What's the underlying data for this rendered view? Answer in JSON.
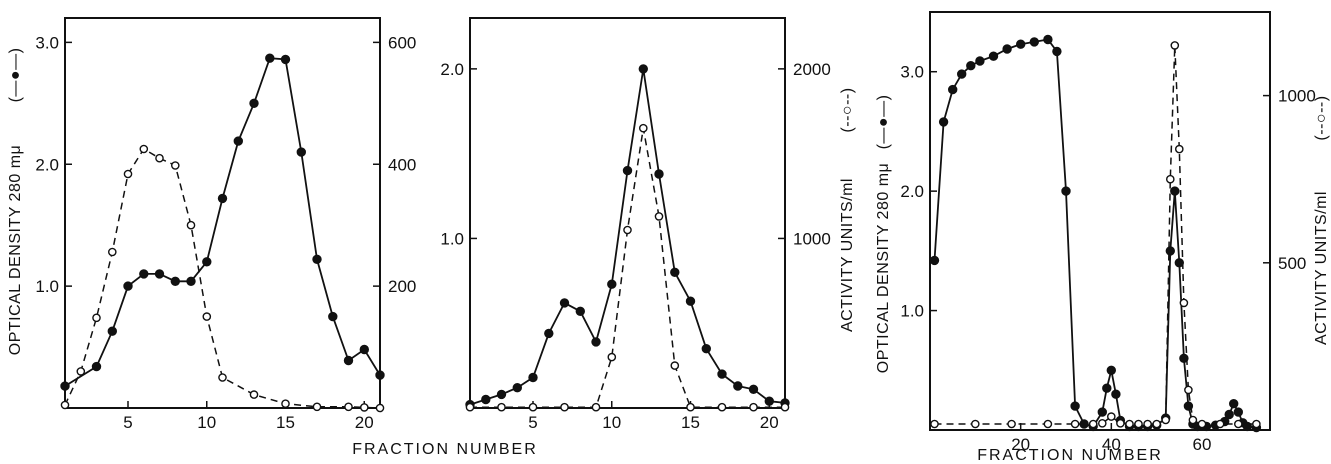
{
  "chart_data": [
    {
      "type": "line",
      "ylabel_left": "OPTICAL DENSITY 280 mμ",
      "ylabel_left_legend": "(—●—)",
      "ylabel_right": "",
      "xlabel": "",
      "xlim": [
        1,
        21
      ],
      "xticks": [
        5,
        10,
        15,
        20
      ],
      "ylim_left": [
        0,
        3.2
      ],
      "yticks_left": [
        "1.0",
        "2.0",
        "3.0"
      ],
      "ylim_right": [
        0,
        640
      ],
      "yticks_right": [
        "200",
        "400",
        "600"
      ],
      "series": [
        {
          "style": "solid-filled",
          "axis": "left",
          "x": [
            1,
            3,
            4,
            5,
            6,
            7,
            8,
            9,
            10,
            11,
            12,
            13,
            14,
            15,
            16,
            17,
            18,
            19,
            20,
            21
          ],
          "y": [
            0.18,
            0.34,
            0.63,
            1.0,
            1.1,
            1.1,
            1.04,
            1.04,
            1.2,
            1.72,
            2.19,
            2.5,
            2.87,
            2.86,
            2.1,
            1.22,
            0.75,
            0.39,
            0.48,
            0.27
          ]
        },
        {
          "style": "dashed-open",
          "axis": "right",
          "x": [
            1,
            2,
            3,
            4,
            5,
            6,
            7,
            8,
            9,
            10,
            11,
            13,
            15,
            17,
            19,
            20,
            21
          ],
          "y": [
            5,
            60,
            148,
            256,
            384,
            425,
            410,
            398,
            300,
            150,
            50,
            22,
            7,
            2,
            2,
            1,
            0
          ]
        }
      ]
    },
    {
      "type": "line",
      "ylabel_left": "",
      "ylabel_right": "ACTIVITY UNITS/ml",
      "ylabel_right_legend": "(--○--)",
      "xlabel": "FRACTION NUMBER",
      "xlim": [
        1,
        21
      ],
      "xticks": [
        5,
        10,
        15,
        20
      ],
      "ylim_left": [
        0,
        2.3
      ],
      "yticks_left": [
        "1.0",
        "2.0"
      ],
      "ylim_right": [
        0,
        2300
      ],
      "yticks_right": [
        "1000",
        "2000"
      ],
      "series": [
        {
          "style": "solid-filled",
          "axis": "left",
          "x": [
            1,
            2,
            3,
            4,
            5,
            6,
            7,
            8,
            9,
            10,
            11,
            12,
            13,
            14,
            15,
            16,
            17,
            18,
            19,
            20,
            21
          ],
          "y": [
            0.02,
            0.05,
            0.08,
            0.12,
            0.18,
            0.44,
            0.62,
            0.57,
            0.39,
            0.73,
            1.4,
            2.0,
            1.38,
            0.8,
            0.63,
            0.35,
            0.2,
            0.13,
            0.11,
            0.04,
            0.03
          ]
        },
        {
          "style": "dashed-open",
          "axis": "right",
          "x": [
            1,
            3,
            5,
            7,
            9,
            10,
            11,
            12,
            13,
            14,
            15,
            17,
            19,
            21
          ],
          "y": [
            5,
            5,
            5,
            5,
            5,
            300,
            1050,
            1650,
            1130,
            250,
            5,
            5,
            5,
            5
          ]
        }
      ]
    },
    {
      "type": "line",
      "ylabel_left": "OPTICAL DENSITY 280 mμ",
      "ylabel_left_legend": "(—●—)",
      "ylabel_right": "ACTIVITY UNITS/ml",
      "ylabel_right_legend": "(--○--)",
      "xlabel": "FRACTION NUMBER",
      "xlim": [
        0,
        75
      ],
      "xticks": [
        20,
        40,
        60
      ],
      "ylim_left": [
        0,
        3.5
      ],
      "yticks_left": [
        "1.0",
        "2.0",
        "3.0"
      ],
      "ylim_right": [
        0,
        1250
      ],
      "yticks_right": [
        "500",
        "1000"
      ],
      "series": [
        {
          "style": "solid-filled",
          "axis": "left",
          "x": [
            1,
            3,
            5,
            7,
            9,
            11,
            14,
            17,
            20,
            23,
            26,
            28,
            30,
            32,
            34,
            36,
            38,
            39,
            40,
            41,
            42,
            44,
            46,
            48,
            50,
            52,
            53,
            54,
            55,
            56,
            57,
            58,
            59,
            61,
            63,
            65,
            66,
            67,
            68,
            69,
            70,
            72
          ],
          "y": [
            1.42,
            2.58,
            2.85,
            2.98,
            3.05,
            3.09,
            3.13,
            3.19,
            3.23,
            3.25,
            3.27,
            3.17,
            2.0,
            0.2,
            0.05,
            0.03,
            0.15,
            0.35,
            0.5,
            0.3,
            0.08,
            0.03,
            0.03,
            0.03,
            0.04,
            0.1,
            1.5,
            2.0,
            1.4,
            0.6,
            0.2,
            0.05,
            0.03,
            0.03,
            0.04,
            0.07,
            0.13,
            0.22,
            0.15,
            0.06,
            0.03,
            0.02
          ]
        },
        {
          "style": "dashed-open",
          "axis": "right",
          "x": [
            1,
            10,
            18,
            26,
            32,
            36,
            38,
            40,
            42,
            44,
            46,
            48,
            50,
            52,
            53,
            54,
            55,
            56,
            57,
            58,
            60,
            64,
            68,
            72
          ],
          "y": [
            18,
            18,
            18,
            18,
            18,
            18,
            20,
            40,
            20,
            18,
            18,
            18,
            18,
            30,
            750,
            1150,
            840,
            380,
            120,
            30,
            18,
            18,
            18,
            18
          ]
        }
      ]
    }
  ]
}
